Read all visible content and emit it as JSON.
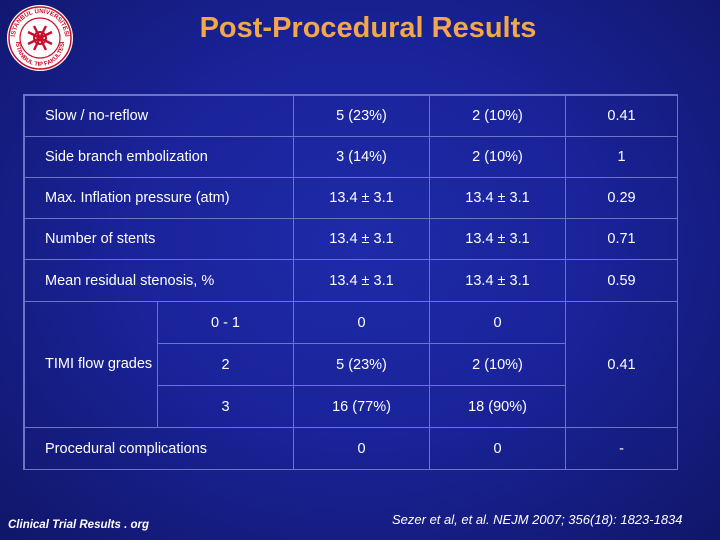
{
  "title": "Post-Procedural Results",
  "logo": {
    "icon": "university-seal-icon",
    "text_top": "İSTANBUL ÜNİVERSİTESİ",
    "text_bottom": "İSTANBUL TIP FAKÜLTESİ"
  },
  "rows": [
    {
      "label": "Slow / no-reflow",
      "a": "5 (23%)",
      "b": "2 (10%)",
      "p": "0.41"
    },
    {
      "label": "Side branch embolization",
      "a": "3 (14%)",
      "b": "2 (10%)",
      "p": "1"
    },
    {
      "label": "Max. Inflation pressure (atm)",
      "a": "13.4 ± 3.1",
      "b": "13.4 ± 3.1",
      "p": "0.29"
    },
    {
      "label": "Number of stents",
      "a": "13.4 ± 3.1",
      "b": "13.4 ± 3.1",
      "p": "0.71"
    },
    {
      "label": "Mean residual stenosis, %",
      "a": "13.4 ± 3.1",
      "b": "13.4 ± 3.1",
      "p": "0.59"
    }
  ],
  "timi": {
    "label": "TIMI flow grades",
    "grades": [
      {
        "grade": "0 - 1",
        "a": "0",
        "b": "0"
      },
      {
        "grade": "2",
        "a": "5 (23%)",
        "b": "2 (10%)"
      },
      {
        "grade": "3",
        "a": "16 (77%)",
        "b": "18 (90%)"
      }
    ],
    "p": "0.41"
  },
  "complications": {
    "label": "Procedural complications",
    "a": "0",
    "b": "0",
    "p": "-"
  },
  "footer": {
    "left": "Clinical Trial Results . org",
    "right": "Sezer et al, et al. NEJM 2007; 356(18): 1823-1834"
  },
  "colors": {
    "title": "#f4a64a",
    "background": "#1a239a",
    "grid": "#6e74c4",
    "logo_red": "#c8102e"
  }
}
